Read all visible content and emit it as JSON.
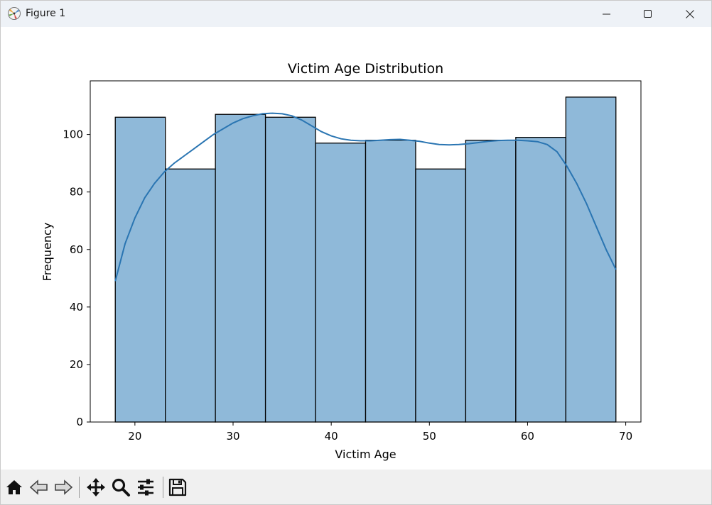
{
  "window": {
    "title": "Figure 1",
    "icons": [
      "matplotlib-app-icon",
      "minimize-icon",
      "maximize-icon",
      "close-icon"
    ]
  },
  "toolbar": {
    "items": [
      "home-icon",
      "back-icon",
      "forward-icon",
      "pan-icon",
      "zoom-icon",
      "configure-subplots-icon",
      "save-icon"
    ]
  },
  "colors": {
    "bar_fill": "#8fb9d9",
    "bar_edge": "#000000",
    "kde_line": "#2a75b2"
  },
  "chart_data": {
    "type": "bar",
    "title": "Victim Age Distribution",
    "xlabel": "Victim Age",
    "ylabel": "Frequency",
    "xlim": [
      15.45,
      71.55
    ],
    "ylim": [
      0,
      118.65
    ],
    "xticks": [
      20,
      30,
      40,
      50,
      60,
      70
    ],
    "yticks": [
      0,
      20,
      40,
      60,
      80,
      100
    ],
    "bins": [
      {
        "x0": 18.0,
        "x1": 23.1,
        "value": 106
      },
      {
        "x0": 23.1,
        "x1": 28.2,
        "value": 88
      },
      {
        "x0": 28.2,
        "x1": 33.3,
        "value": 107
      },
      {
        "x0": 33.3,
        "x1": 38.4,
        "value": 106
      },
      {
        "x0": 38.4,
        "x1": 43.5,
        "value": 97
      },
      {
        "x0": 43.5,
        "x1": 48.6,
        "value": 98
      },
      {
        "x0": 48.6,
        "x1": 53.7,
        "value": 88
      },
      {
        "x0": 53.7,
        "x1": 58.8,
        "value": 98
      },
      {
        "x0": 58.8,
        "x1": 63.9,
        "value": 99
      },
      {
        "x0": 63.9,
        "x1": 69.0,
        "value": 113
      }
    ],
    "kde": {
      "x": [
        18,
        19,
        20,
        21,
        22,
        23,
        24,
        25,
        26,
        27,
        28,
        29,
        30,
        31,
        32,
        33,
        34,
        35,
        36,
        37,
        38,
        39,
        40,
        41,
        42,
        43,
        44,
        45,
        46,
        47,
        48,
        49,
        50,
        51,
        52,
        53,
        54,
        55,
        56,
        57,
        58,
        59,
        60,
        61,
        62,
        63,
        64,
        65,
        66,
        67,
        68,
        69
      ],
      "y": [
        49,
        62,
        71,
        78,
        83,
        87,
        90,
        92.5,
        95,
        97.5,
        100,
        102,
        104,
        105.5,
        106.5,
        107.2,
        107.4,
        107.2,
        106.5,
        105,
        103,
        101,
        99.5,
        98.5,
        98,
        97.8,
        97.8,
        98,
        98.2,
        98.3,
        98,
        97.6,
        97,
        96.5,
        96.4,
        96.5,
        96.8,
        97.2,
        97.6,
        97.9,
        98,
        98,
        97.8,
        97.5,
        96.5,
        94,
        89,
        83,
        76,
        68,
        60,
        53
      ]
    }
  }
}
